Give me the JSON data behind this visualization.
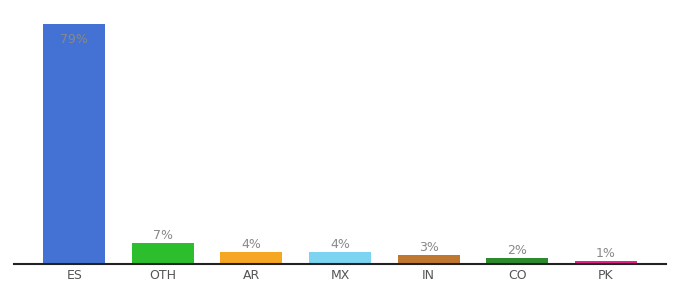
{
  "categories": [
    "ES",
    "OTH",
    "AR",
    "MX",
    "IN",
    "CO",
    "PK"
  ],
  "values": [
    79,
    7,
    4,
    4,
    3,
    2,
    1
  ],
  "labels": [
    "79%",
    "7%",
    "4%",
    "4%",
    "3%",
    "2%",
    "1%"
  ],
  "bar_colors": [
    "#4472d4",
    "#2dbe2d",
    "#f5a623",
    "#7dd4f0",
    "#c07830",
    "#2d8a2d",
    "#e91e8c"
  ],
  "ylim": [
    0,
    84
  ],
  "label_color": "#888888",
  "label_color_inside": "#888888",
  "x_tick_color": "#555555",
  "background_color": "#ffffff",
  "bottom_line_color": "#222222"
}
